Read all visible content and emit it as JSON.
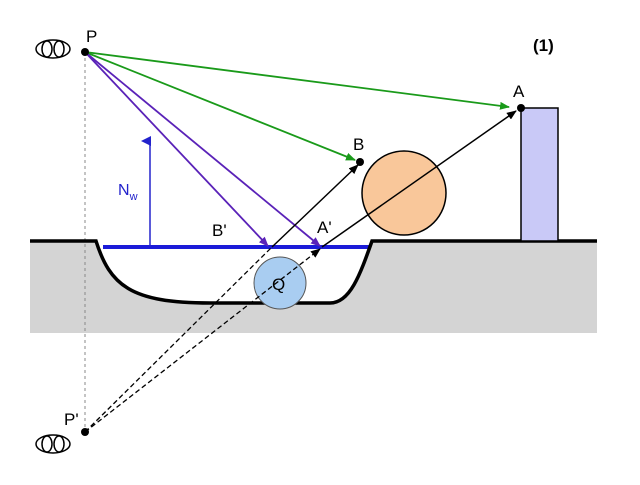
{
  "figure": {
    "number_label": "(1)"
  },
  "labels": {
    "P": "P",
    "P_prime": "P'",
    "A": "A",
    "A_prime": "A'",
    "B": "B",
    "B_prime": "B'",
    "Q": "Q",
    "normal_N": "N",
    "normal_sub": "w"
  },
  "icons": {
    "viewer_top": "eye-icon",
    "viewer_bottom": "eye-icon"
  },
  "colors": {
    "green_rays": "#1a9a1a",
    "purple_rays": "#5a22b8",
    "water_surface": "#1b1bd8",
    "normal_arrow": "#2222cc",
    "ground": "#d4d4d4",
    "sphere": "#f9c79a",
    "small_sphere": "#a9cdf1",
    "box": "#c9c9f7"
  }
}
